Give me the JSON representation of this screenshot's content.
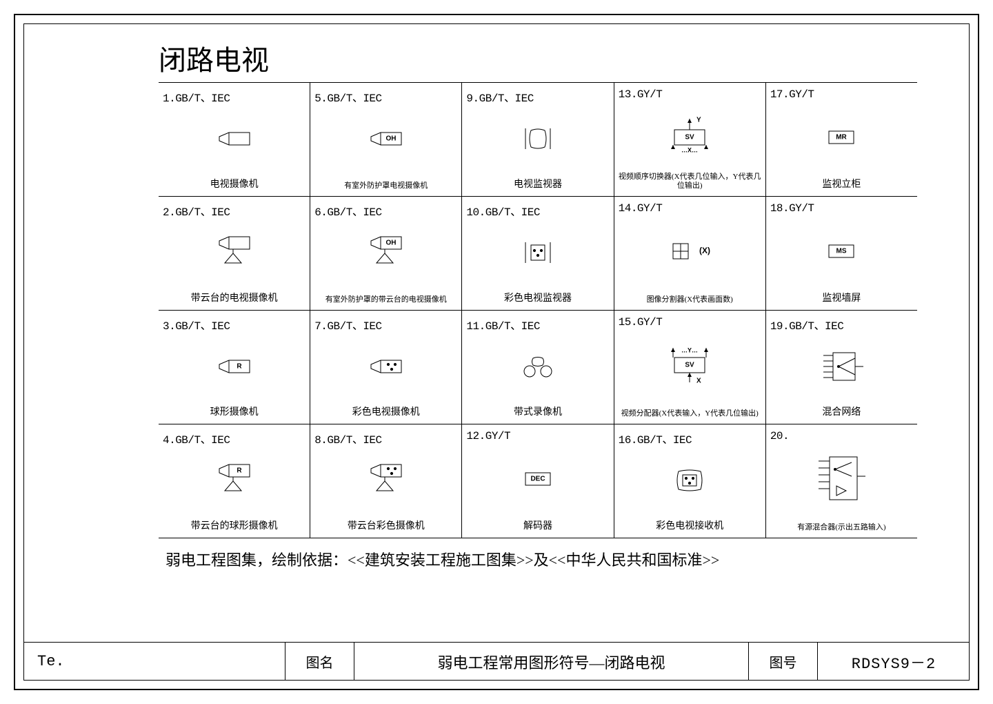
{
  "title": "闭路电视",
  "footnote": "弱电工程图集，绘制依据：<<建筑安装工程施工图集>>及<<中华人民共和国标准>>",
  "titleblock": {
    "te": "Te.",
    "name_label": "图名",
    "name_value": "弱电工程常用图形符号—闭路电视",
    "num_label": "图号",
    "num_value": "RDSYS9－2"
  },
  "style": {
    "stroke": "#000000",
    "bg": "#ffffff",
    "font_std": "Courier New",
    "font_cn": "SimSun",
    "title_fontsize": 40,
    "std_fontsize": 16,
    "label_fontsize": 14,
    "footnote_fontsize": 22
  },
  "cells": [
    {
      "n": "1",
      "std": "GB/T、IEC",
      "label": "电视摄像机",
      "sym": "cam"
    },
    {
      "n": "5",
      "std": "GB/T、IEC",
      "label": "有室外防护罩电视摄像机",
      "sym": "cam-oh",
      "small": true
    },
    {
      "n": "9",
      "std": "GB/T、IEC",
      "label": "电视监视器",
      "sym": "monitor"
    },
    {
      "n": "13",
      "std": "GY/T",
      "label": "视频顺序切换器(X代表几位输入，Y代表几位输出)",
      "sym": "sv-xy",
      "small": true
    },
    {
      "n": "17",
      "std": "GY/T",
      "label": "监视立柜",
      "sym": "box-mr"
    },
    {
      "n": "2",
      "std": "GB/T、IEC",
      "label": "带云台的电视摄像机",
      "sym": "cam-pt"
    },
    {
      "n": "6",
      "std": "GB/T、IEC",
      "label": "有室外防护罩的带云台的电视摄像机",
      "sym": "cam-oh-pt",
      "small": true
    },
    {
      "n": "10",
      "std": "GB/T、IEC",
      "label": "彩色电视监视器",
      "sym": "monitor-color"
    },
    {
      "n": "14",
      "std": "GY/T",
      "label": "图像分割器(X代表画面数)",
      "sym": "splitter",
      "small": true
    },
    {
      "n": "18",
      "std": "GY/T",
      "label": "监视墙屏",
      "sym": "box-ms"
    },
    {
      "n": "3",
      "std": "GB/T、IEC",
      "label": "球形摄像机",
      "sym": "cam-r"
    },
    {
      "n": "7",
      "std": "GB/T、IEC",
      "label": "彩色电视摄像机",
      "sym": "cam-color"
    },
    {
      "n": "11",
      "std": "GB/T、IEC",
      "label": "带式录像机",
      "sym": "vcr"
    },
    {
      "n": "15",
      "std": "GY/T",
      "label": "视频分配器(X代表输入，Y代表几位输出)",
      "sym": "sv-yx",
      "small": true
    },
    {
      "n": "19",
      "std": "GB/T、IEC",
      "label": "混合网络",
      "sym": "mixnet"
    },
    {
      "n": "4",
      "std": "GB/T、IEC",
      "label": "带云台的球形摄像机",
      "sym": "cam-r-pt"
    },
    {
      "n": "8",
      "std": "GB/T、IEC",
      "label": "带云台彩色摄像机",
      "sym": "cam-color-pt"
    },
    {
      "n": "12",
      "std": "GY/T",
      "label": "解码器",
      "sym": "box-dec"
    },
    {
      "n": "16",
      "std": "GB/T、IEC",
      "label": "彩色电视接收机",
      "sym": "tv-color"
    },
    {
      "n": "20",
      "std": "",
      "label": "有源混合器(示出五路输入)",
      "sym": "mixnet-amp",
      "small": true
    }
  ],
  "symbol_text": {
    "OH": "OH",
    "R": "R",
    "MR": "MR",
    "MS": "MS",
    "DEC": "DEC",
    "SV": "SV",
    "X": "X",
    "Y": "Y",
    "Xp": "(X)",
    "Xd": "…X…",
    "Yd": "…Y…"
  }
}
